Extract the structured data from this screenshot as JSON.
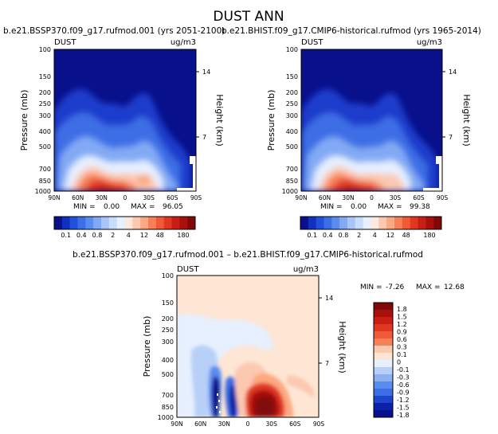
{
  "title": "DUST ANN",
  "chart_data": [
    {
      "type": "heatmap",
      "subtitle": "b.e21.BSSP370.f09_g17.rufmod.001 (yrs 2051-2100)",
      "variable": "DUST",
      "units": "ug/m3",
      "ylabel": "Pressure (mb)",
      "ylabel_right": "Height (km)",
      "xticks": [
        "90N",
        "60N",
        "30N",
        "0",
        "30S",
        "60S",
        "90S"
      ],
      "yticks": [
        "100",
        "150",
        "200",
        "250",
        "300",
        "400",
        "500",
        "700",
        "850",
        "1000"
      ],
      "height_ticks": [
        "14",
        "7"
      ],
      "min_label": "MIN =",
      "min_value": "0.00",
      "max_label": "MAX =",
      "max_value": "96.05"
    },
    {
      "type": "heatmap",
      "subtitle": "b.e21.BHIST.f09_g17.CMIP6-historical.rufmod (yrs 1965-2014)",
      "variable": "DUST",
      "units": "ug/m3",
      "ylabel": "Pressure (mb)",
      "ylabel_right": "Height (km)",
      "xticks": [
        "90N",
        "60N",
        "30N",
        "0",
        "30S",
        "60S",
        "90S"
      ],
      "yticks": [
        "100",
        "150",
        "200",
        "250",
        "300",
        "400",
        "500",
        "700",
        "850",
        "1000"
      ],
      "height_ticks": [
        "14",
        "7"
      ],
      "min_label": "MIN =",
      "min_value": "0.00",
      "max_label": "MAX =",
      "max_value": "99.38"
    },
    {
      "type": "heatmap",
      "subtitle": "b.e21.BSSP370.f09_g17.rufmod.001 – b.e21.BHIST.f09_g17.CMIP6-historical.rufmod",
      "variable": "DUST",
      "units": "ug/m3",
      "ylabel": "Pressure (mb)",
      "ylabel_right": "Height (km)",
      "xticks": [
        "90N",
        "60N",
        "30N",
        "0",
        "30S",
        "60S",
        "90S"
      ],
      "yticks": [
        "100",
        "150",
        "200",
        "250",
        "300",
        "400",
        "500",
        "700",
        "850",
        "1000"
      ],
      "height_ticks": [
        "14",
        "7"
      ],
      "min_label": "MIN =",
      "min_value": "-7.26",
      "max_label": "MAX =",
      "max_value": "12.68"
    }
  ],
  "colorbar_top": {
    "labels": [
      "0.1",
      "0.4",
      "0.8",
      "2",
      "4",
      "12",
      "48",
      "180"
    ],
    "colors": [
      "#08108c",
      "#1030c0",
      "#2050dc",
      "#3c6ee6",
      "#5a8cf0",
      "#82aaf4",
      "#a8c4f8",
      "#cadcfc",
      "#e6f0ff",
      "#fce8dc",
      "#fcc8b0",
      "#fca880",
      "#f88058",
      "#f05a38",
      "#e03820",
      "#c81e14",
      "#a8100c",
      "#820808"
    ]
  },
  "colorbar_diff": {
    "labels": [
      "1.8",
      "1.5",
      "1.2",
      "0.9",
      "0.6",
      "0.3",
      "0.1",
      "0",
      "-0.1",
      "-0.3",
      "-0.6",
      "-0.9",
      "-1.2",
      "-1.5",
      "-1.8"
    ],
    "colors": [
      "#820808",
      "#a8100c",
      "#c81e14",
      "#e03820",
      "#f05a38",
      "#f88058",
      "#fcc8b0",
      "#fde6d4",
      "#e6f0ff",
      "#b8d0f8",
      "#8cb0f0",
      "#5a8cf0",
      "#3c6ee6",
      "#1c44cc",
      "#0c20a8",
      "#08108c"
    ]
  }
}
